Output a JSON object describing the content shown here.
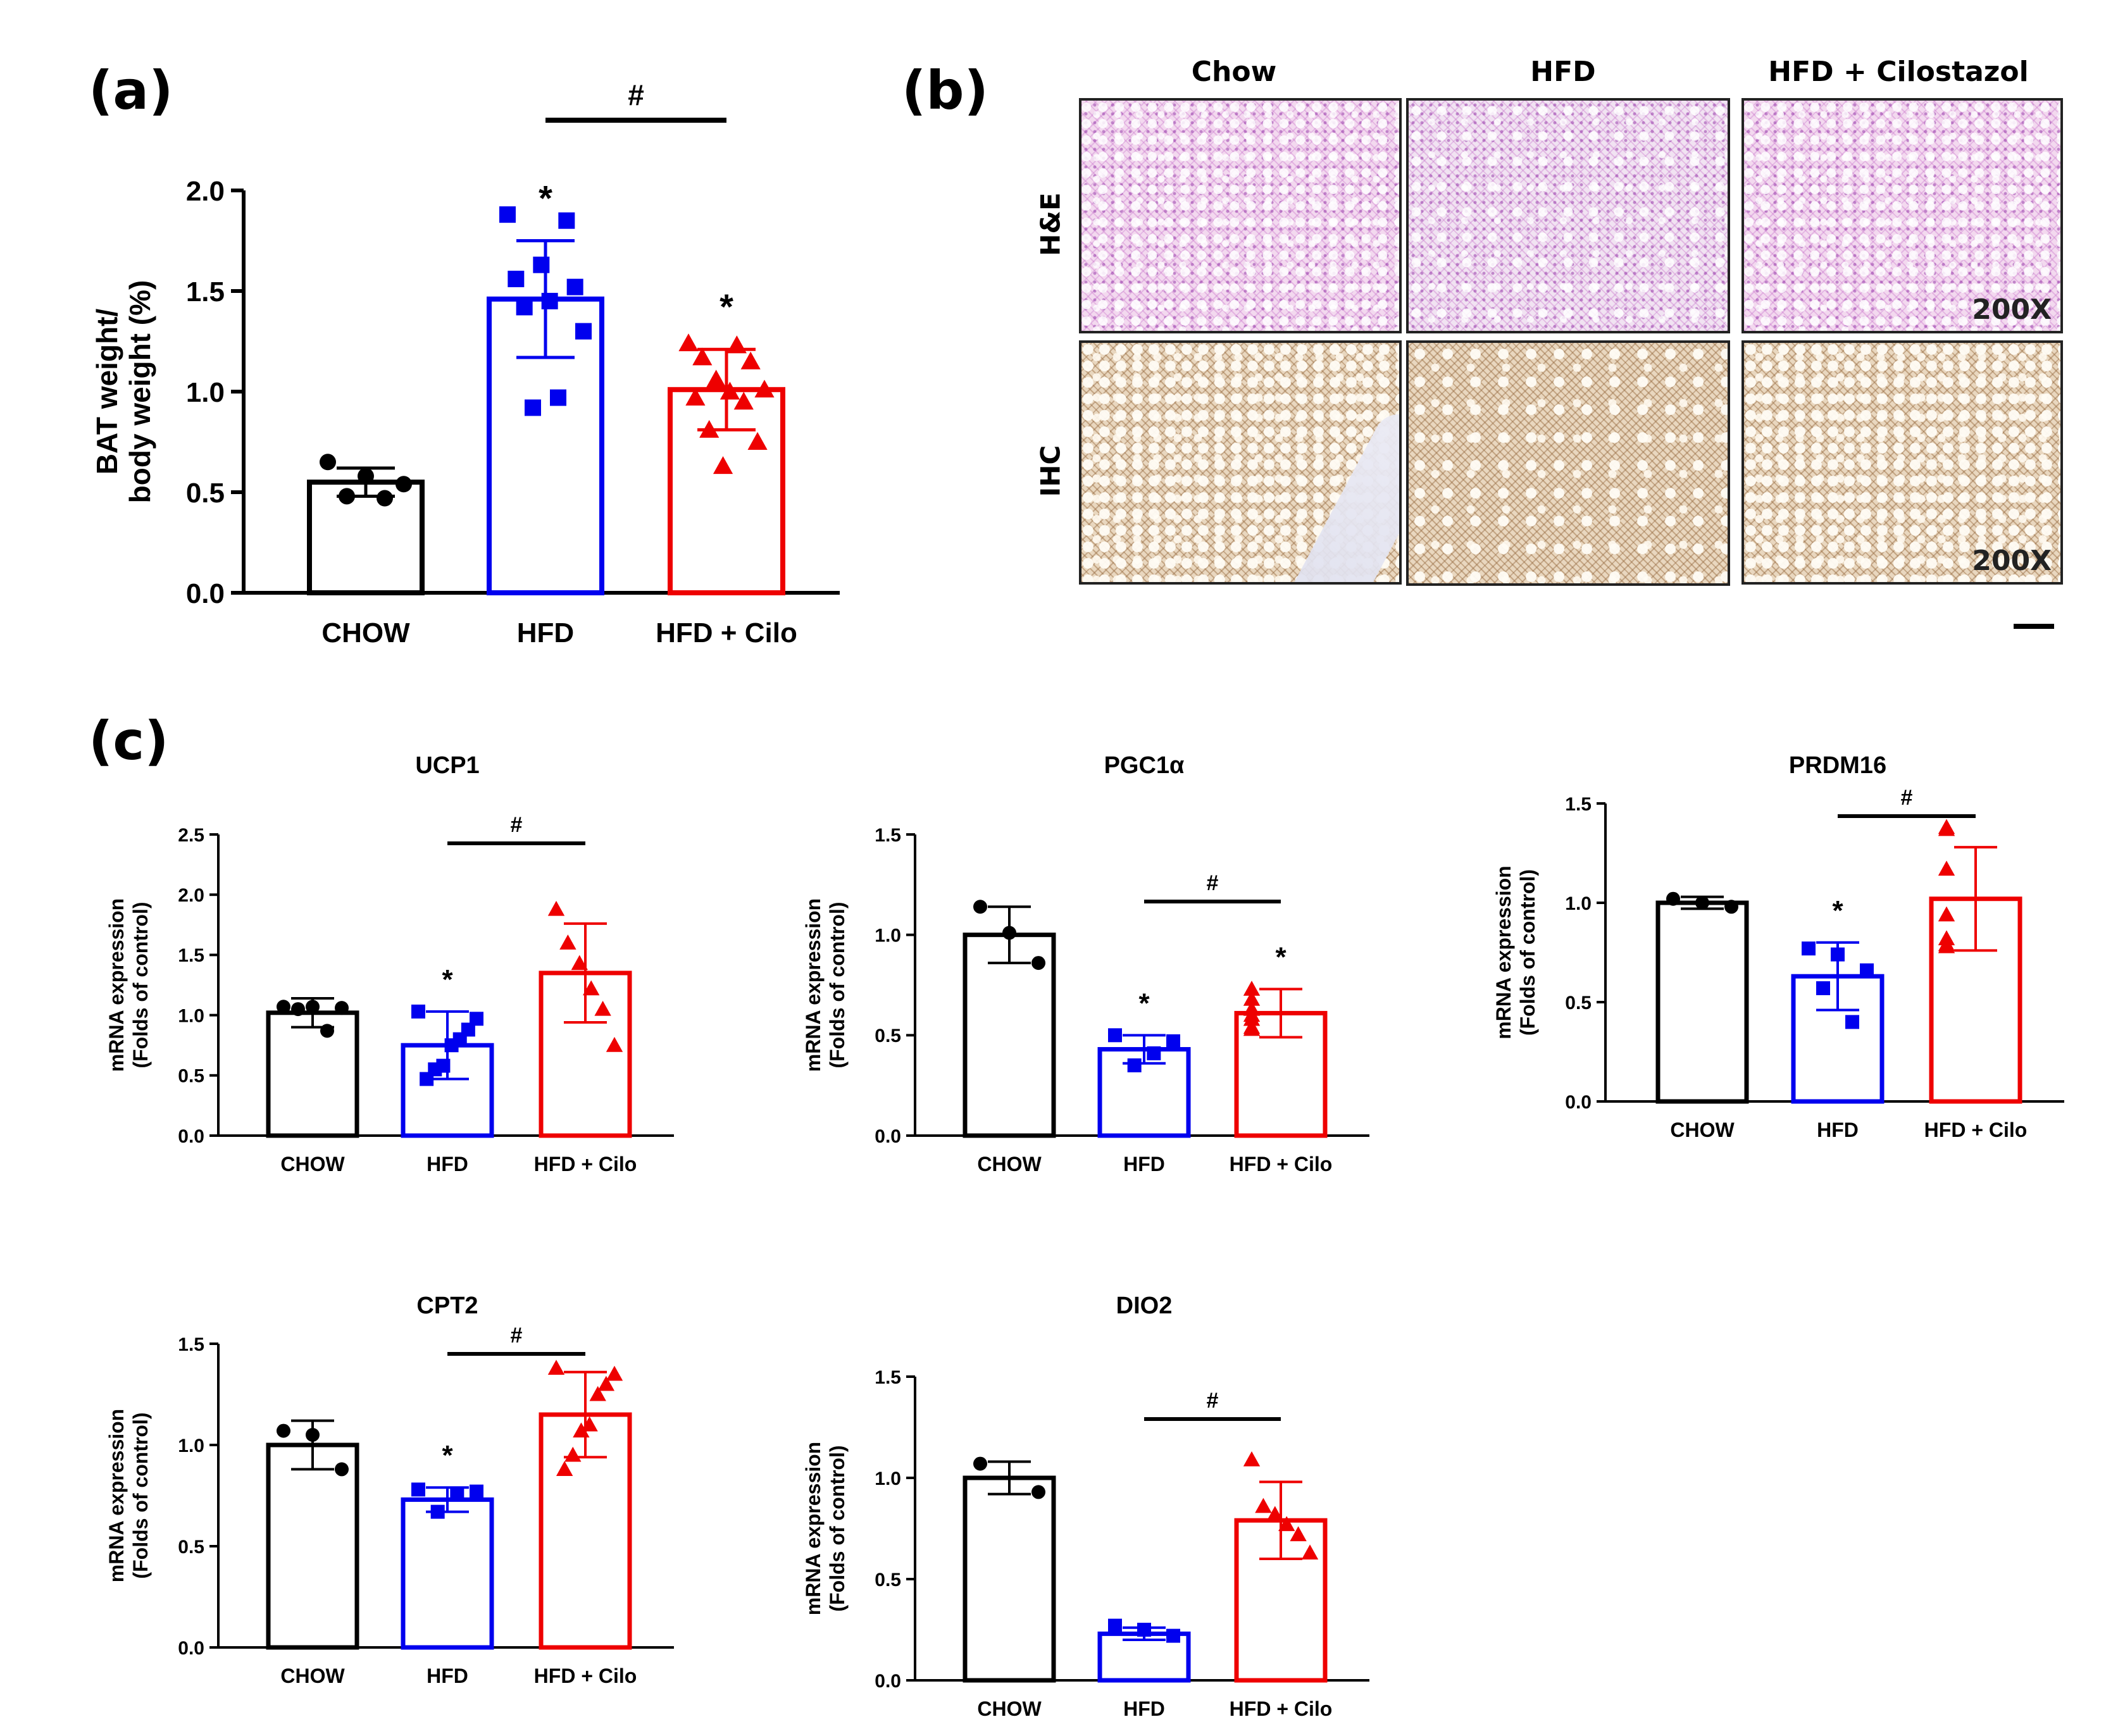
{
  "panels": {
    "a": "(a)",
    "b": "(b)",
    "c": "(c)"
  },
  "colors": {
    "chow": "#000000",
    "hfd": "#0000ee",
    "cilo": "#ee0000"
  },
  "histology": {
    "columns": [
      "Chow",
      "HFD",
      "HFD + Cilostazol"
    ],
    "rows": [
      "H&E",
      "IHC"
    ],
    "magnification": "200X"
  },
  "chart_data": [
    {
      "id": "bat",
      "type": "bar",
      "title": "",
      "ylabel_lines": [
        "BAT weight/",
        "body weight (%)"
      ],
      "categories": [
        "CHOW",
        "HFD",
        "HFD + Cilo"
      ],
      "values": [
        0.55,
        1.46,
        1.01
      ],
      "sd": [
        0.07,
        0.29,
        0.2
      ],
      "points": [
        [
          0.65,
          0.58,
          0.54,
          0.48,
          0.47
        ],
        [
          1.88,
          1.85,
          1.63,
          1.56,
          1.52,
          1.45,
          1.42,
          1.3,
          0.97,
          0.92
        ],
        [
          1.24,
          1.23,
          1.17,
          1.15,
          1.06,
          1.01,
          1.0,
          0.97,
          0.95,
          0.81,
          0.75,
          0.63
        ]
      ],
      "ylim": [
        0,
        2.0
      ],
      "yticks": [
        "0.0",
        "0.5",
        "1.0",
        "1.5",
        "2.0"
      ],
      "stars": [
        "",
        "*",
        "*"
      ],
      "hash": {
        "from": 1,
        "to": 2,
        "label": "#"
      }
    },
    {
      "id": "ucp1",
      "type": "bar",
      "title": "UCP1",
      "ylabel_lines": [
        "mRNA expression",
        "(Folds of control)"
      ],
      "categories": [
        "CHOW",
        "HFD",
        "HFD + Cilo"
      ],
      "values": [
        1.02,
        0.75,
        1.35
      ],
      "sd": [
        0.12,
        0.28,
        0.41
      ],
      "points": [
        [
          1.07,
          1.07,
          1.06,
          1.05,
          0.87
        ],
        [
          1.03,
          0.97,
          0.88,
          0.8,
          0.75,
          0.58,
          0.55,
          0.47
        ],
        [
          1.88,
          1.6,
          1.43,
          1.22,
          1.05,
          0.75
        ]
      ],
      "ylim": [
        0,
        2.5
      ],
      "yticks": [
        "0.0",
        "0.5",
        "1.0",
        "1.5",
        "2.0",
        "2.5"
      ],
      "stars": [
        "",
        "*",
        ""
      ],
      "hash": {
        "from": 1,
        "to": 2,
        "label": "#"
      }
    },
    {
      "id": "pgc1a",
      "type": "bar",
      "title": "PGC1α",
      "ylabel_lines": [
        "mRNA expression",
        "(Folds of control)"
      ],
      "categories": [
        "CHOW",
        "HFD",
        "HFD + Cilo"
      ],
      "values": [
        1.0,
        0.43,
        0.61
      ],
      "sd": [
        0.14,
        0.07,
        0.12
      ],
      "points": [
        [
          1.14,
          1.01,
          0.86
        ],
        [
          0.5,
          0.47,
          0.41,
          0.35
        ],
        [
          0.73,
          0.68,
          0.63,
          0.6,
          0.58,
          0.54,
          0.53
        ]
      ],
      "ylim": [
        0,
        1.5
      ],
      "yticks": [
        "0.0",
        "0.5",
        "1.0",
        "1.5"
      ],
      "stars": [
        "",
        "*",
        "*"
      ],
      "hash": {
        "from": 1,
        "to": 2,
        "label": "#"
      }
    },
    {
      "id": "prdm16",
      "type": "bar",
      "title": "PRDM16",
      "ylabel_lines": [
        "mRNA expression",
        "(Folds of control)"
      ],
      "categories": [
        "CHOW",
        "HFD",
        "HFD + Cilo"
      ],
      "values": [
        1.0,
        0.63,
        1.02
      ],
      "sd": [
        0.03,
        0.17,
        0.26
      ],
      "points": [
        [
          1.02,
          1.0,
          0.98
        ],
        [
          0.77,
          0.74,
          0.66,
          0.57,
          0.4
        ],
        [
          1.38,
          1.37,
          1.17,
          0.94,
          0.82,
          0.79,
          0.78
        ]
      ],
      "ylim": [
        0,
        1.5
      ],
      "yticks": [
        "0.0",
        "0.5",
        "1.0",
        "1.5"
      ],
      "stars": [
        "",
        "*",
        ""
      ],
      "hash": {
        "from": 1,
        "to": 2,
        "label": "#"
      }
    },
    {
      "id": "cpt2",
      "type": "bar",
      "title": "CPT2",
      "ylabel_lines": [
        "mRNA expression",
        "(Folds of control)"
      ],
      "categories": [
        "CHOW",
        "HFD",
        "HFD + Cilo"
      ],
      "values": [
        1.0,
        0.73,
        1.15
      ],
      "sd": [
        0.12,
        0.06,
        0.21
      ],
      "points": [
        [
          1.07,
          1.05,
          0.88
        ],
        [
          0.78,
          0.77,
          0.76,
          0.67
        ],
        [
          1.38,
          1.35,
          1.3,
          1.25,
          1.1,
          1.07,
          0.95,
          0.88
        ]
      ],
      "ylim": [
        0,
        1.5
      ],
      "yticks": [
        "0.0",
        "0.5",
        "1.0",
        "1.5"
      ],
      "stars": [
        "",
        "*",
        ""
      ],
      "hash": {
        "from": 1,
        "to": 2,
        "label": "#"
      }
    },
    {
      "id": "dio2",
      "type": "bar",
      "title": "DIO2",
      "ylabel_lines": [
        "mRNA expression",
        "(Folds of control)"
      ],
      "categories": [
        "CHOW",
        "HFD",
        "HFD + Cilo"
      ],
      "values": [
        1.0,
        0.23,
        0.79
      ],
      "sd": [
        0.08,
        0.03,
        0.19
      ],
      "points": [
        [
          1.07,
          0.93
        ],
        [
          0.27,
          0.25,
          0.22
        ],
        [
          1.09,
          0.86,
          0.82,
          0.77,
          0.72,
          0.63
        ]
      ],
      "ylim": [
        0,
        1.5
      ],
      "yticks": [
        "0.0",
        "0.5",
        "1.0",
        "1.5"
      ],
      "stars": [
        "",
        "",
        ""
      ],
      "hash": {
        "from": 1,
        "to": 2,
        "label": "#"
      }
    }
  ]
}
